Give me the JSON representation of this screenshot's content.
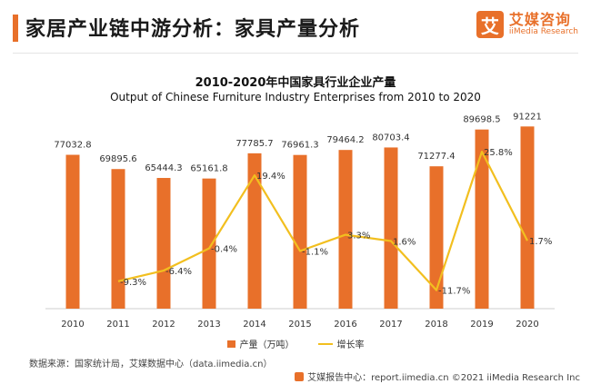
{
  "header": {
    "title": "家居产业链中游分析：家具产量分析",
    "logo_mark": "艾",
    "logo_cn": "艾媒咨询",
    "logo_en": "iiMedia Research"
  },
  "chart_data": {
    "type": "bar",
    "title": "2010-2020年中国家具行业企业产量",
    "subtitle": "Output of Chinese Furniture Industry Enterprises from 2010 to 2020",
    "categories": [
      "2010",
      "2011",
      "2012",
      "2013",
      "2014",
      "2015",
      "2016",
      "2017",
      "2018",
      "2019",
      "2020"
    ],
    "series": [
      {
        "name": "产量（万吨）",
        "type": "bar",
        "color": "#e8702a",
        "values": [
          77032.8,
          69895.6,
          65444.3,
          65161.8,
          77785.7,
          76961.3,
          79464.2,
          80703.4,
          71277.4,
          89698.5,
          91221
        ],
        "labels": [
          "77032.8",
          "69895.6",
          "65444.3",
          "65161.8",
          "77785.7",
          "76961.3",
          "79464.2",
          "80703.4",
          "71277.4",
          "89698.5",
          "91221"
        ]
      },
      {
        "name": "增长率",
        "type": "line",
        "color": "#f2bf1f",
        "values": [
          null,
          -9.3,
          -6.4,
          -0.4,
          19.4,
          -1.1,
          3.3,
          1.6,
          -11.7,
          25.8,
          1.7
        ],
        "labels": [
          "",
          "-9.3%",
          "-6.4%",
          "-0.4%",
          "19.4%",
          "-1.1%",
          "3.3%",
          "1.6%",
          "-11.7%",
          "25.8%",
          "1.7%"
        ]
      }
    ],
    "bar_ylim": [
      0,
      100000
    ],
    "line_ylim": [
      -15,
      30
    ],
    "grid": false,
    "legend_position": "bottom"
  },
  "source": "数据来源：国家统计局，艾媒数据中心（data.iimedia.cn）",
  "footer": "艾媒报告中心：report.iimedia.cn  ©2021  iiMedia Research  Inc"
}
